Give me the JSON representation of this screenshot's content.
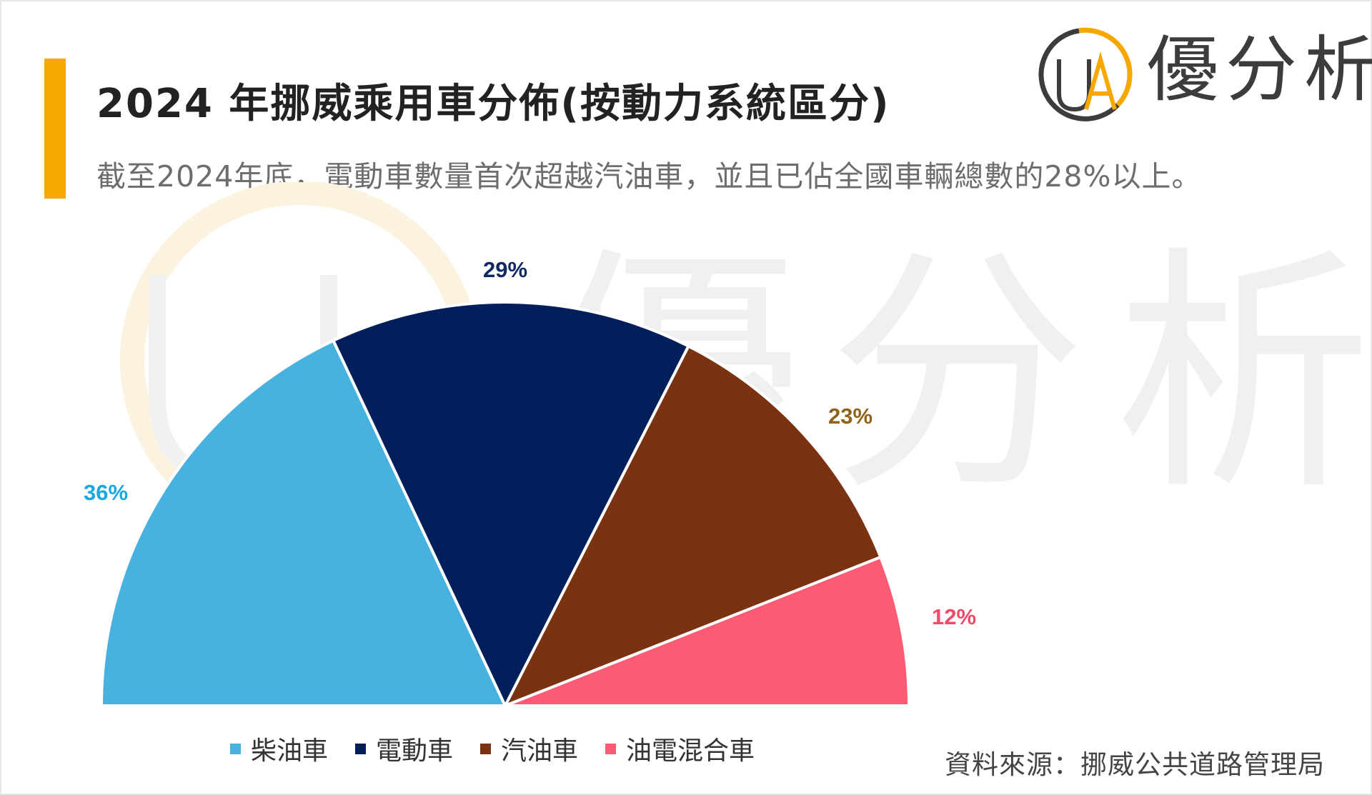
{
  "header": {
    "title": "2024 年挪威乘用車分佈(按動力系統區分)",
    "subtitle": "截至2024年底，電動車數量首次超越汽油車，並且已佔全國車輛總數的28%以上。"
  },
  "brand": {
    "logo_text": "優分析",
    "logo_letters": "UA",
    "watermark_text": "優分析",
    "accent_color": "#f7a800"
  },
  "footer": {
    "source": "資料來源：挪威公共道路管理局"
  },
  "chart_data": {
    "type": "pie",
    "subtype": "half-pie",
    "categories": [
      "柴油車",
      "電動車",
      "汽油車",
      "油電混合車"
    ],
    "values": [
      36,
      29,
      23,
      12
    ],
    "labels": [
      "36%",
      "29%",
      "23%",
      "12%"
    ],
    "colors": [
      "#47b1e0",
      "#021f5c",
      "#7b3211",
      "#fd5a74"
    ],
    "label_colors": [
      "#1ba7df",
      "#0f2a62",
      "#8d6418",
      "#f0496a"
    ],
    "legend_position": "bottom"
  }
}
